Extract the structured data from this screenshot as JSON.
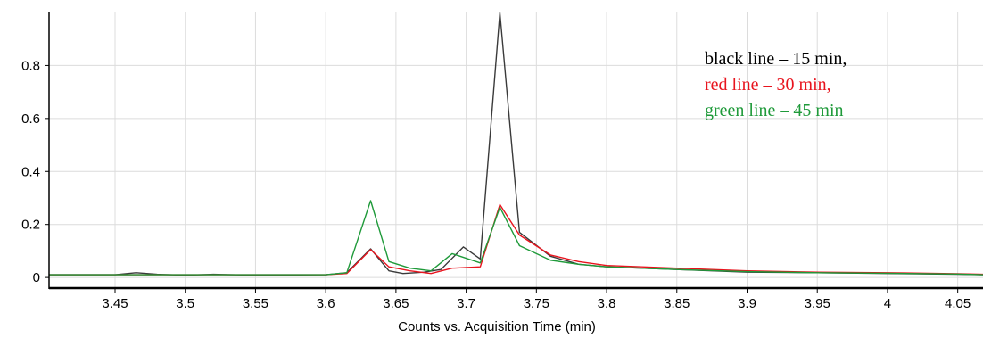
{
  "chart_data": {
    "type": "line",
    "title": "",
    "xlabel": "Counts vs. Acquisition Time (min)",
    "ylabel": "",
    "xlim": [
      3.403,
      4.068
    ],
    "ylim": [
      -0.04,
      1.0
    ],
    "grid": true,
    "legend_position": "top-right",
    "x_ticks": [
      3.45,
      3.5,
      3.55,
      3.6,
      3.65,
      3.7,
      3.75,
      3.8,
      3.85,
      3.9,
      3.95,
      4.0,
      4.05
    ],
    "x_tick_labels": [
      "3.45",
      "3.5",
      "3.55",
      "3.6",
      "3.65",
      "3.7",
      "3.75",
      "3.8",
      "3.85",
      "3.9",
      "3.95",
      "4",
      "4.05"
    ],
    "y_ticks": [
      0,
      0.2,
      0.4,
      0.6,
      0.8
    ],
    "y_tick_labels": [
      "0",
      "0.2",
      "0.4",
      "0.6",
      "0.8"
    ],
    "legend": [
      {
        "text": "black line – 15 min,",
        "color": "#000000"
      },
      {
        "text": "red line – 30 min,",
        "color": "#e8141e"
      },
      {
        "text": "green line – 45 min",
        "color": "#1f9a3a"
      }
    ],
    "series": [
      {
        "color": "#3a3a3a",
        "x": [
          3.403,
          3.45,
          3.465,
          3.48,
          3.5,
          3.52,
          3.55,
          3.6,
          3.615,
          3.632,
          3.645,
          3.655,
          3.67,
          3.682,
          3.698,
          3.71,
          3.724,
          3.738,
          3.76,
          3.78,
          3.8,
          3.85,
          3.9,
          3.95,
          4.0,
          4.05,
          4.068
        ],
        "y": [
          0.01,
          0.01,
          0.018,
          0.012,
          0.008,
          0.012,
          0.008,
          0.01,
          0.018,
          0.108,
          0.025,
          0.015,
          0.02,
          0.03,
          0.115,
          0.07,
          1.0,
          0.17,
          0.08,
          0.05,
          0.04,
          0.03,
          0.02,
          0.018,
          0.015,
          0.012,
          0.01
        ]
      },
      {
        "color": "#e8141e",
        "x": [
          3.403,
          3.5,
          3.6,
          3.615,
          3.632,
          3.645,
          3.66,
          3.675,
          3.69,
          3.71,
          3.724,
          3.738,
          3.76,
          3.78,
          3.8,
          3.85,
          3.9,
          3.95,
          4.0,
          4.05,
          4.068
        ],
        "y": [
          0.01,
          0.01,
          0.01,
          0.015,
          0.105,
          0.04,
          0.025,
          0.015,
          0.035,
          0.04,
          0.275,
          0.16,
          0.085,
          0.06,
          0.045,
          0.035,
          0.025,
          0.02,
          0.018,
          0.014,
          0.012
        ]
      },
      {
        "color": "#1f9a3a",
        "x": [
          3.403,
          3.5,
          3.6,
          3.615,
          3.632,
          3.645,
          3.66,
          3.675,
          3.69,
          3.71,
          3.724,
          3.738,
          3.76,
          3.78,
          3.8,
          3.85,
          3.9,
          3.95,
          4.0,
          4.05,
          4.068
        ],
        "y": [
          0.01,
          0.01,
          0.01,
          0.018,
          0.29,
          0.06,
          0.035,
          0.025,
          0.09,
          0.055,
          0.265,
          0.12,
          0.065,
          0.05,
          0.04,
          0.03,
          0.022,
          0.018,
          0.016,
          0.013,
          0.01
        ]
      }
    ]
  }
}
